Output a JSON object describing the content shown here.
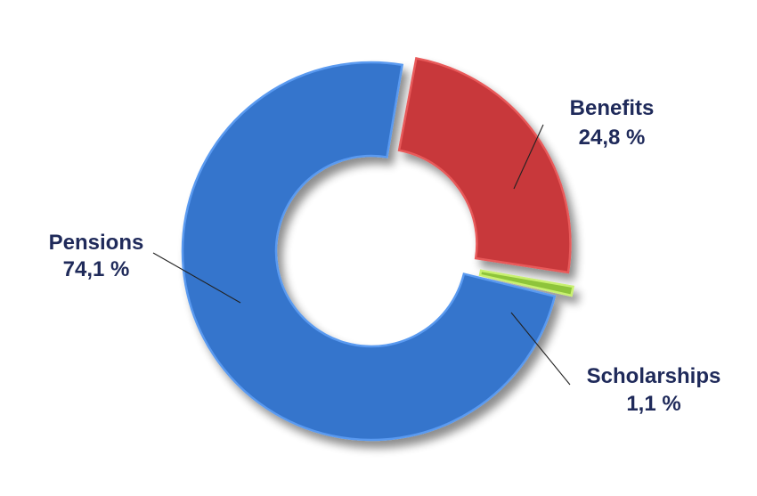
{
  "chart_data": {
    "type": "pie",
    "donut": true,
    "title": "",
    "legend": "none",
    "slices": [
      {
        "name": "Benefits",
        "value": 24.8,
        "value_label": "24,8 %",
        "color": "#c8373a",
        "edge": "#e85a5a"
      },
      {
        "name": "Scholarships",
        "value": 1.1,
        "value_label": "1,1 %",
        "color": "#8ec43a",
        "edge": "#c8f070"
      },
      {
        "name": "Pensions",
        "value": 74.1,
        "value_label": "74,1 %",
        "color": "#3574cc",
        "edge": "#5a9af0"
      }
    ]
  }
}
